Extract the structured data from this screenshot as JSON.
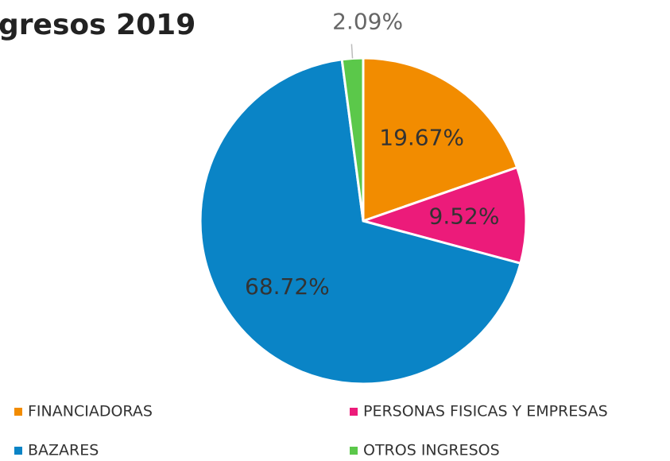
{
  "chart_data": {
    "type": "pie",
    "title": "gresos 2019",
    "categories": [
      "FINANCIADORAS",
      "PERSONAS FISICAS Y EMPRESAS",
      "BAZARES",
      "OTROS INGRESOS"
    ],
    "values": [
      19.67,
      9.52,
      68.72,
      2.09
    ],
    "value_labels": [
      "19.67%",
      "9.52%",
      "68.72%",
      "2.09%"
    ],
    "colors": [
      "#f28c00",
      "#ec1b7a",
      "#0a84c6",
      "#5bc84a"
    ],
    "legend": "bottom"
  }
}
